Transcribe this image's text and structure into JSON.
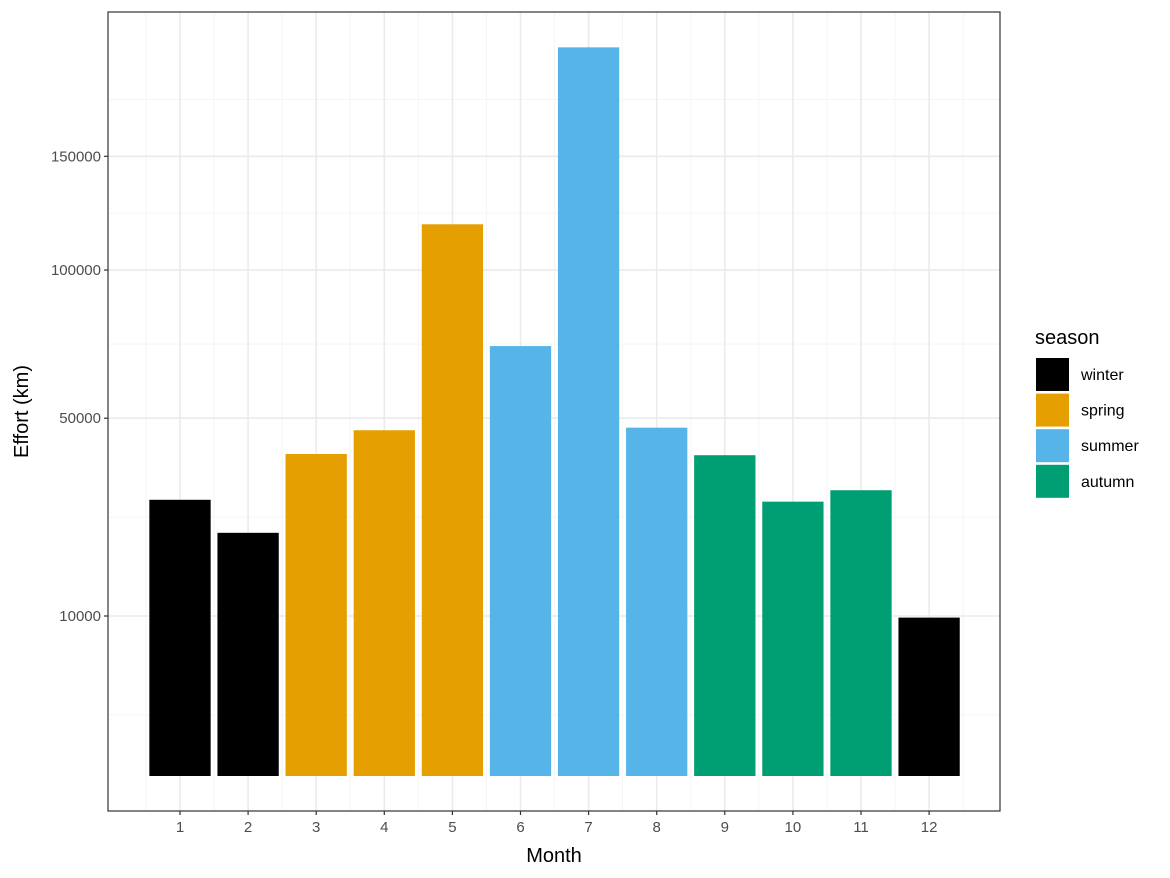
{
  "chart_data": {
    "type": "bar",
    "title": "",
    "xlabel": "Month",
    "ylabel": "Effort (km)",
    "y_scale": "sqrt",
    "categories": [
      "1",
      "2",
      "3",
      "4",
      "5",
      "6",
      "7",
      "8",
      "9",
      "10",
      "11",
      "12"
    ],
    "values": [
      29800,
      23100,
      40500,
      46700,
      118900,
      72200,
      207400,
      47400,
      40200,
      29400,
      31900,
      9800
    ],
    "season": [
      "winter",
      "winter",
      "spring",
      "spring",
      "spring",
      "summer",
      "summer",
      "summer",
      "autumn",
      "autumn",
      "autumn",
      "winter"
    ],
    "y_ticks": [
      10000,
      50000,
      100000,
      150000
    ],
    "y_tick_labels": [
      "10000",
      "50000",
      "100000",
      "150000"
    ],
    "ylim": [
      0,
      218000
    ],
    "grid": true,
    "legend": {
      "title": "season",
      "position": "right",
      "entries": [
        {
          "label": "winter",
          "color": "#000000"
        },
        {
          "label": "spring",
          "color": "#E69F00"
        },
        {
          "label": "summer",
          "color": "#56B4E9"
        },
        {
          "label": "autumn",
          "color": "#009E73"
        }
      ]
    }
  },
  "colors": {
    "panel_border": "#333333",
    "grid_major": "#ebebeb",
    "grid_minor": "#f5f5f5",
    "tick": "#333333"
  }
}
